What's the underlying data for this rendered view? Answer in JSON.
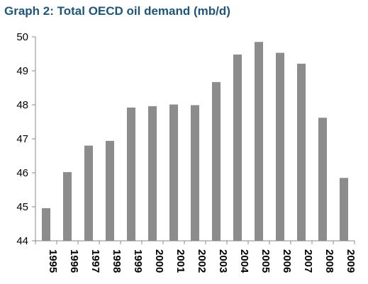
{
  "chart_data": {
    "type": "bar",
    "title": "Graph 2: Total OECD oil demand (mb/d)",
    "xlabel": "",
    "ylabel": "",
    "categories": [
      "1995",
      "1996",
      "1997",
      "1998",
      "1999",
      "2000",
      "2001",
      "2002",
      "2003",
      "2004",
      "2005",
      "2006",
      "2007",
      "2008",
      "2009"
    ],
    "values": [
      44.96,
      46.02,
      46.8,
      46.94,
      47.92,
      47.96,
      48.01,
      47.99,
      48.67,
      49.48,
      49.85,
      49.53,
      49.21,
      47.62,
      45.85
    ],
    "ylim": [
      44,
      50
    ],
    "yticks": [
      "44",
      "45",
      "46",
      "47",
      "48",
      "49",
      "50"
    ],
    "grid": false,
    "legend": "none",
    "bar_color": "#8c8c8c"
  }
}
